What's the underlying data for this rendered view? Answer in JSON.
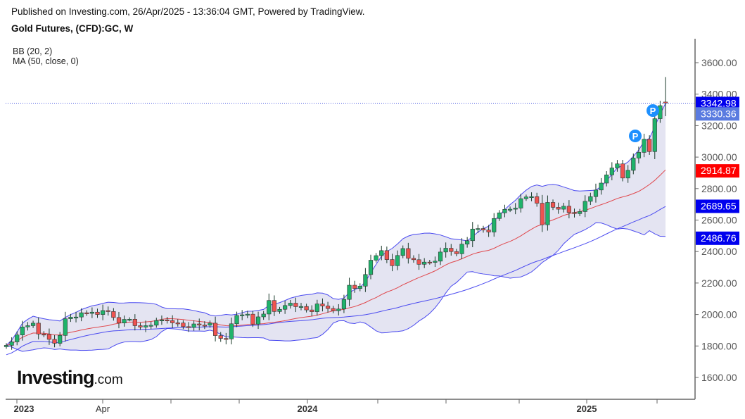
{
  "header": {
    "published": "Published on Investing.com, 26/Apr/2025 - 13:36:04 GMT, Powered by TradingView.",
    "title": "Gold Futures, (CFD):GC, W"
  },
  "indicators": [
    "BB (20, 2)",
    "MA (50, close, 0)"
  ],
  "logo": {
    "main": "Investing",
    "suffix": ".com"
  },
  "chart_data": {
    "type": "candlestick",
    "title": "Gold Futures, (CFD):GC, W",
    "interval": "weekly",
    "first_open": 1795,
    "closes": [
      1804,
      1826,
      1870,
      1921,
      1929,
      1945,
      1876,
      1874,
      1842,
      1817,
      1867,
      1973,
      1983,
      1984,
      2011,
      2007,
      2015,
      2000,
      2025,
      2019,
      1981,
      1946,
      1969,
      1970,
      1929,
      1920,
      1929,
      1932,
      1962,
      1966,
      1961,
      1947,
      1946,
      1923,
      1918,
      1940,
      1933,
      1932,
      1945,
      1866,
      1848,
      1845,
      1941,
      1994,
      1998,
      2002,
      1939,
      1985,
      2003,
      2089,
      2019,
      2033,
      2057,
      2072,
      2050,
      2051,
      2029,
      2018,
      2067,
      2054,
      2038,
      2024,
      2035,
      2096,
      2186,
      2165,
      2180,
      2254,
      2345,
      2374,
      2406,
      2349,
      2310,
      2375,
      2419,
      2357,
      2348,
      2319,
      2333,
      2331,
      2339,
      2397,
      2421,
      2400,
      2386,
      2447,
      2469,
      2543,
      2546,
      2537,
      2524,
      2610,
      2646,
      2668,
      2669,
      2676,
      2736,
      2747,
      2749,
      2707,
      2570,
      2712,
      2681,
      2669,
      2688,
      2648,
      2641,
      2654,
      2719,
      2749,
      2791,
      2835,
      2887,
      2931,
      2957,
      2867,
      2916,
      2994,
      3030,
      3114,
      3035,
      3244,
      3327,
      3343
    ],
    "last_candle": {
      "open": 3350,
      "high": 3509,
      "low": 3260,
      "close": 3342.98
    },
    "x_tick_labels": [
      "2023",
      "Apr",
      "2024",
      "2025"
    ],
    "y_ticks": [
      "1600.00",
      "1800.00",
      "2000.00",
      "2200.00",
      "2400.00",
      "2600.00",
      "2800.00",
      "3000.00",
      "3200.00",
      "3400.00",
      "3600.00"
    ],
    "ylim": [
      1520,
      3750
    ],
    "price_labels": [
      {
        "text": "3342.98",
        "color": "#0000ee",
        "value": 3342.98
      },
      {
        "text": "3330.36",
        "color": "#5a7be0",
        "value": 3330.36
      },
      {
        "text": "2914.87",
        "color": "#ff0000",
        "value": 2914.87
      },
      {
        "text": "2689.65",
        "color": "#0000ee",
        "value": 2689.65
      },
      {
        "text": "2486.76",
        "color": "#0000ee",
        "value": 2486.76
      }
    ],
    "marker_label": "P",
    "colors": {
      "up": "#1fb36b",
      "down": "#ef5350",
      "band_fill": "#e4e4f2",
      "band_line": "#4a4af0",
      "basis": "#e0474c",
      "ma": "#4a4af0"
    }
  }
}
